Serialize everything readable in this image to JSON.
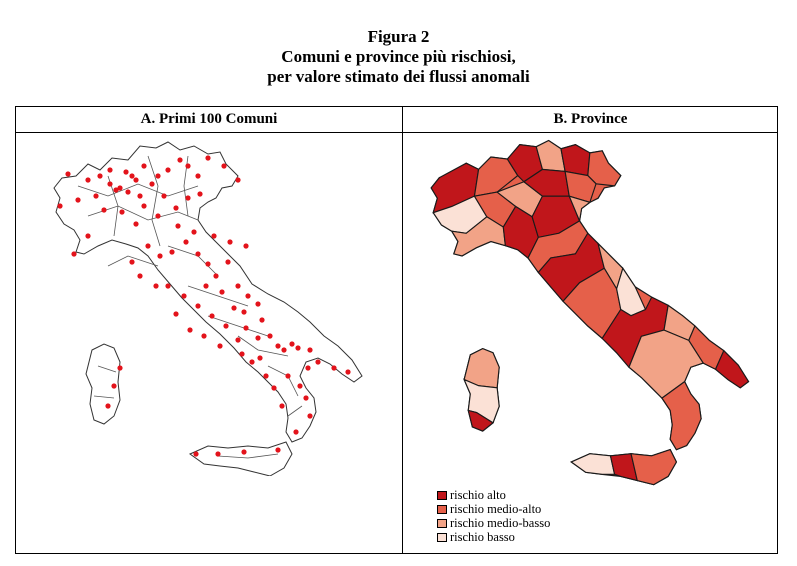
{
  "figure": {
    "title": "Figura 2",
    "subtitle_line1": "Comuni e province più rischiosi,",
    "subtitle_line2": "per valore stimato dei flussi anomali"
  },
  "panels": {
    "a_title": "A. Primi 100 Comuni",
    "b_title": "B. Province"
  },
  "legend": [
    {
      "label": "rischio alto",
      "color": "#c0161b"
    },
    {
      "label": "rischio medio-alto",
      "color": "#e5604a"
    },
    {
      "label": "rischio medio-basso",
      "color": "#f2a387"
    },
    {
      "label": "rischio basso",
      "color": "#fbe1d6"
    }
  ],
  "colors": {
    "municipality_marker": "#e3131b",
    "outline": "#1a1a1a"
  },
  "icons": [
    "red-dot-marker"
  ]
}
